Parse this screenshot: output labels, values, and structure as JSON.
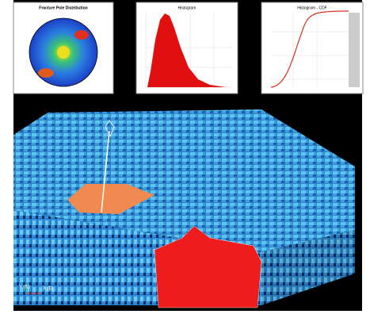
{
  "panels": [
    {
      "title": "Fracture Pole Distribution"
    },
    {
      "title": "Histogram"
    },
    {
      "title": "Histogram - CDF"
    }
  ],
  "axes": {
    "y": "Y (N)",
    "x": "X (E)"
  }
}
